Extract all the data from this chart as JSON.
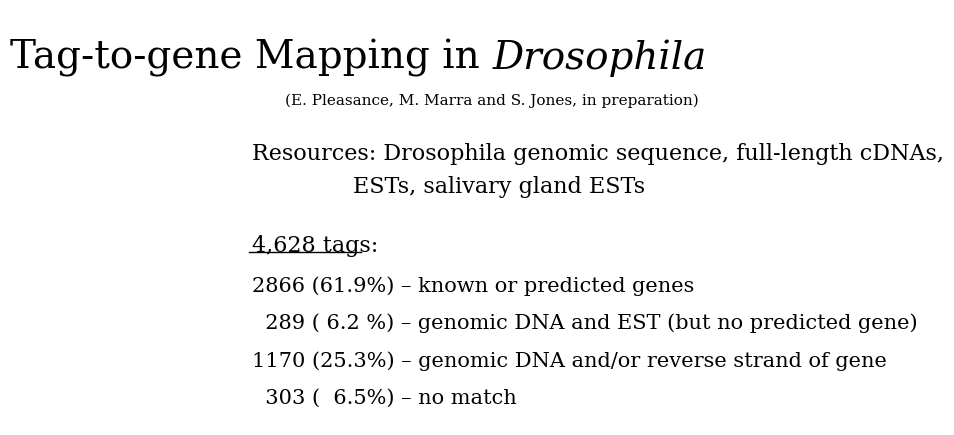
{
  "title_part1": "Tag-to-gene Mapping in ",
  "title_part2": "Drosophila",
  "subtitle": "(E. Pleasance, M. Marra and S. Jones, in preparation)",
  "resources_line1": "Resources: Drosophila genomic sequence, full-length cDNAs,",
  "resources_line2": "ESTs, salivary gland ESTs",
  "tags_header": "4,628 tags:",
  "stat_lines": [
    "2866 (61.9%) – known or predicted genes",
    "  289 ( 6.2 %) – genomic DNA and EST (but no predicted gene)",
    "1170 (25.3%) – genomic DNA and/or reverse strand of gene",
    "  303 (  6.5%) – no match"
  ],
  "bg_color": "#ffffff",
  "text_color": "#000000",
  "title_fontsize": 28,
  "subtitle_fontsize": 11,
  "resources_fontsize": 16,
  "tags_fontsize": 16,
  "stats_fontsize": 15
}
